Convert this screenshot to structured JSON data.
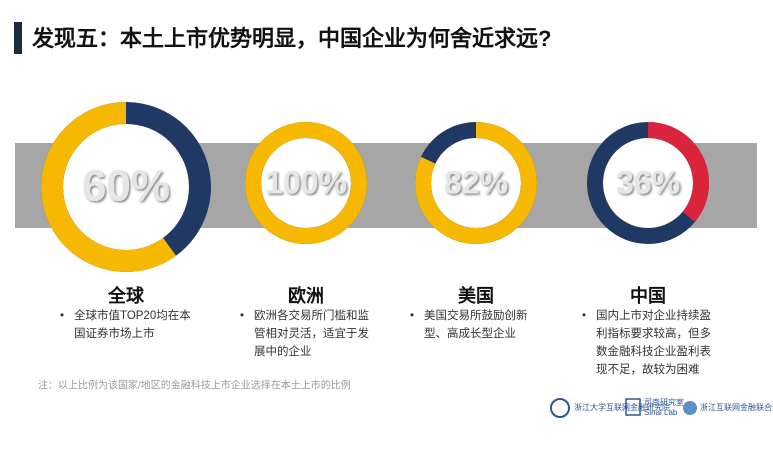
{
  "title": "发现五：本土上市优势明显，中国企业为何舍近求远?",
  "note": "注：以上比例为该国家/地区的金融科技上市企业选择在本土上市的比例",
  "logos": [
    "浙江大学互联网金融研究院",
    "司南研究室",
    "Sinai Lab",
    "浙江互联网金融联合会"
  ],
  "chart_data": [
    {
      "type": "donut",
      "title": "全球",
      "values": [
        60
      ],
      "value_labels": [
        "60%"
      ],
      "color": "#f6b800",
      "track_color": "#1f3864",
      "clockwise": false,
      "bullets": [
        "全球市值TOP20均在本国证券市场上市"
      ]
    },
    {
      "type": "donut",
      "title": "欧洲",
      "values": [
        100
      ],
      "value_labels": [
        "100%"
      ],
      "color": "#f6b800",
      "track_color": "#1f3864",
      "clockwise": true,
      "bullets": [
        "欧洲各交易所门槛和监管相对灵活，适宜于发展中的企业"
      ]
    },
    {
      "type": "donut",
      "title": "美国",
      "values": [
        82
      ],
      "value_labels": [
        "82%"
      ],
      "color": "#f6b800",
      "track_color": "#1f3864",
      "clockwise": true,
      "bullets": [
        "美国交易所鼓励创新型、高成长型企业"
      ]
    },
    {
      "type": "donut",
      "title": "中国",
      "values": [
        36
      ],
      "value_labels": [
        "36%"
      ],
      "color": "#d9243c",
      "track_color": "#1f3864",
      "clockwise": true,
      "bullets": [
        "国内上市对企业持续盈利指标要求较高，但多数金融科技企业盈利表现不足，故较为困难"
      ]
    }
  ]
}
